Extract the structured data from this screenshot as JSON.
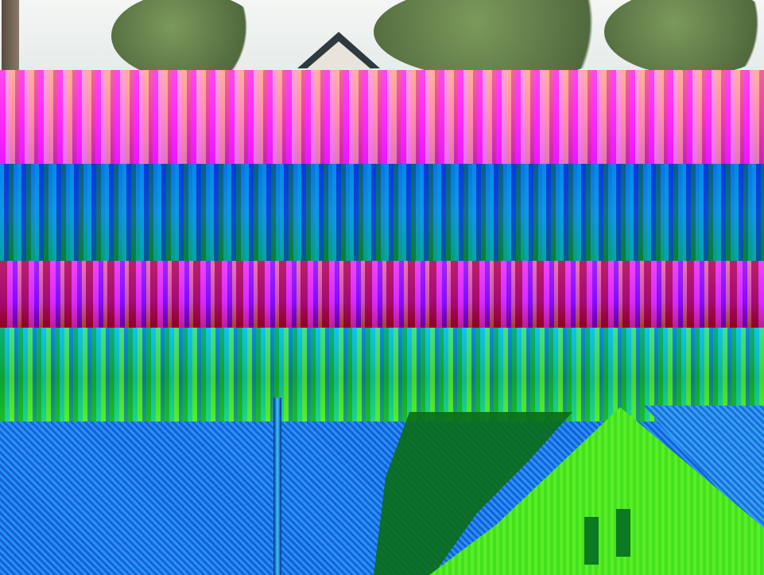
{
  "image": {
    "type": "photograph",
    "visible_text": []
  }
}
